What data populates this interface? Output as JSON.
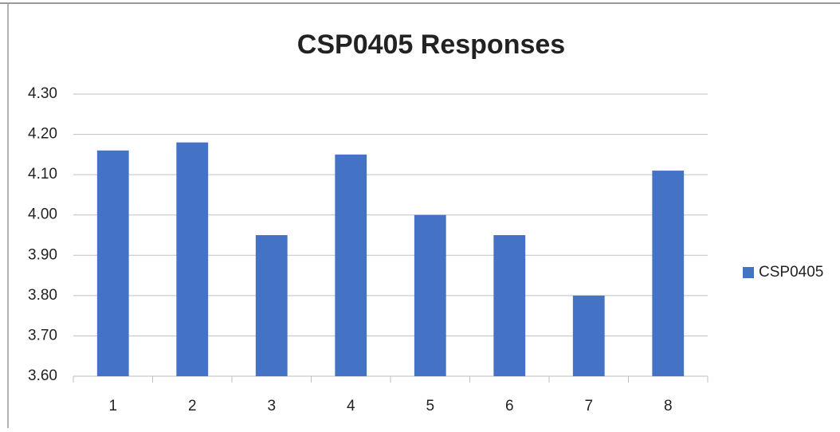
{
  "chart_data": {
    "type": "bar",
    "title": "CSP0405 Responses",
    "categories": [
      "1",
      "2",
      "3",
      "4",
      "5",
      "6",
      "7",
      "8"
    ],
    "series": [
      {
        "name": "CSP0405",
        "color": "#4472c4",
        "values": [
          4.16,
          4.18,
          3.95,
          4.15,
          4.0,
          3.95,
          3.8,
          4.11
        ]
      }
    ],
    "ylim": [
      3.6,
      4.3
    ],
    "yticks": [
      {
        "value": 3.6,
        "label": "3.60"
      },
      {
        "value": 3.7,
        "label": "3.70"
      },
      {
        "value": 3.8,
        "label": "3.80"
      },
      {
        "value": 3.9,
        "label": "3.90"
      },
      {
        "value": 4.0,
        "label": "4.00"
      },
      {
        "value": 4.1,
        "label": "4.10"
      },
      {
        "value": 4.2,
        "label": "4.20"
      },
      {
        "value": 4.3,
        "label": "4.30"
      }
    ],
    "grid": true,
    "legend": "right"
  }
}
